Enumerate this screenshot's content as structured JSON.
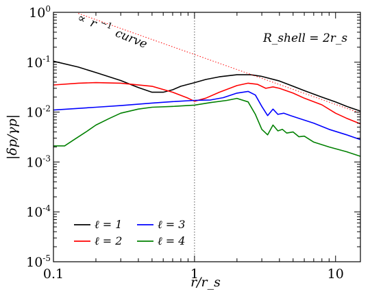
{
  "chart_data": {
    "type": "line",
    "xlabel": "r/r_s",
    "ylabel": "|δp/γp|",
    "xscale": "log",
    "yscale": "log",
    "xlim": [
      0.1,
      15
    ],
    "ylim": [
      1e-05,
      1
    ],
    "x_ticks": [
      {
        "value": 0.1,
        "label": "0.1"
      },
      {
        "value": 1,
        "label": "1"
      },
      {
        "value": 10,
        "label": "10"
      }
    ],
    "y_ticks": [
      {
        "value": 1,
        "base": "10",
        "exp": "0"
      },
      {
        "value": 0.1,
        "base": "10",
        "exp": "-1"
      },
      {
        "value": 0.01,
        "base": "10",
        "exp": "-2"
      },
      {
        "value": 0.001,
        "base": "10",
        "exp": "-3"
      },
      {
        "value": 0.0001,
        "base": "10",
        "exp": "-4"
      },
      {
        "value": 1e-05,
        "base": "10",
        "exp": "-5"
      }
    ],
    "vline_x": 1,
    "annotations": {
      "shell_label": "R_shell = 2r_s",
      "curve_label_prefix": "∝",
      "curve_label_base": "r",
      "curve_label_exp": "−1",
      "curve_label_suffix": "curve"
    },
    "legend_position": "lower-left",
    "series": [
      {
        "name": "ℓ = 1",
        "color": "#000000",
        "x": [
          0.1,
          0.15,
          0.2,
          0.3,
          0.4,
          0.5,
          0.6,
          0.7,
          0.8,
          1.0,
          1.2,
          1.5,
          2.0,
          2.5,
          3.0,
          4.0,
          5.0,
          6.0,
          8.0,
          10.0,
          12.0,
          15.0
        ],
        "y": [
          0.105,
          0.08,
          0.062,
          0.043,
          0.031,
          0.025,
          0.025,
          0.028,
          0.033,
          0.039,
          0.045,
          0.051,
          0.056,
          0.056,
          0.052,
          0.042,
          0.033,
          0.027,
          0.02,
          0.016,
          0.013,
          0.0105
        ]
      },
      {
        "name": "ℓ = 2",
        "color": "#ff0000",
        "x": [
          0.1,
          0.15,
          0.2,
          0.3,
          0.5,
          0.7,
          0.9,
          1.0,
          1.2,
          1.5,
          2.0,
          2.4,
          2.8,
          3.2,
          3.6,
          4.0,
          5.0,
          6.0,
          8.0,
          10.0,
          12.0,
          15.0
        ],
        "y": [
          0.035,
          0.038,
          0.039,
          0.038,
          0.033,
          0.025,
          0.019,
          0.0165,
          0.019,
          0.025,
          0.034,
          0.038,
          0.036,
          0.03,
          0.032,
          0.03,
          0.024,
          0.019,
          0.014,
          0.0095,
          0.0075,
          0.0058
        ]
      },
      {
        "name": "ℓ = 3",
        "color": "#0000ff",
        "x": [
          0.1,
          0.2,
          0.3,
          0.5,
          0.7,
          1.0,
          1.3,
          1.6,
          2.0,
          2.4,
          2.7,
          3.0,
          3.3,
          3.6,
          3.9,
          4.3,
          4.8,
          5.5,
          7.0,
          9.0,
          12.0,
          15.0
        ],
        "y": [
          0.011,
          0.0125,
          0.0135,
          0.0152,
          0.0162,
          0.0172,
          0.0175,
          0.0195,
          0.024,
          0.026,
          0.022,
          0.013,
          0.0085,
          0.0115,
          0.009,
          0.0095,
          0.0085,
          0.0075,
          0.006,
          0.0045,
          0.0035,
          0.0028
        ]
      },
      {
        "name": "ℓ = 4",
        "color": "#008000",
        "x": [
          0.1,
          0.12,
          0.14,
          0.17,
          0.2,
          0.25,
          0.3,
          0.4,
          0.5,
          0.7,
          1.0,
          1.3,
          1.7,
          2.0,
          2.4,
          2.7,
          3.0,
          3.3,
          3.6,
          3.9,
          4.2,
          4.5,
          5.0,
          5.5,
          6.0,
          7.0,
          9.0,
          12.0,
          15.0
        ],
        "y": [
          0.0021,
          0.0021,
          0.0028,
          0.004,
          0.0055,
          0.0075,
          0.0095,
          0.0115,
          0.0125,
          0.013,
          0.0138,
          0.0155,
          0.0172,
          0.0188,
          0.016,
          0.009,
          0.0045,
          0.0035,
          0.0055,
          0.0042,
          0.0045,
          0.0038,
          0.004,
          0.0032,
          0.0033,
          0.0025,
          0.002,
          0.0016,
          0.0013
        ]
      },
      {
        "name": "r^-1 reference",
        "color": "#ff0000",
        "style": "dotted",
        "x": [
          0.15,
          15.0
        ],
        "y": [
          0.95,
          0.0095
        ]
      }
    ]
  }
}
